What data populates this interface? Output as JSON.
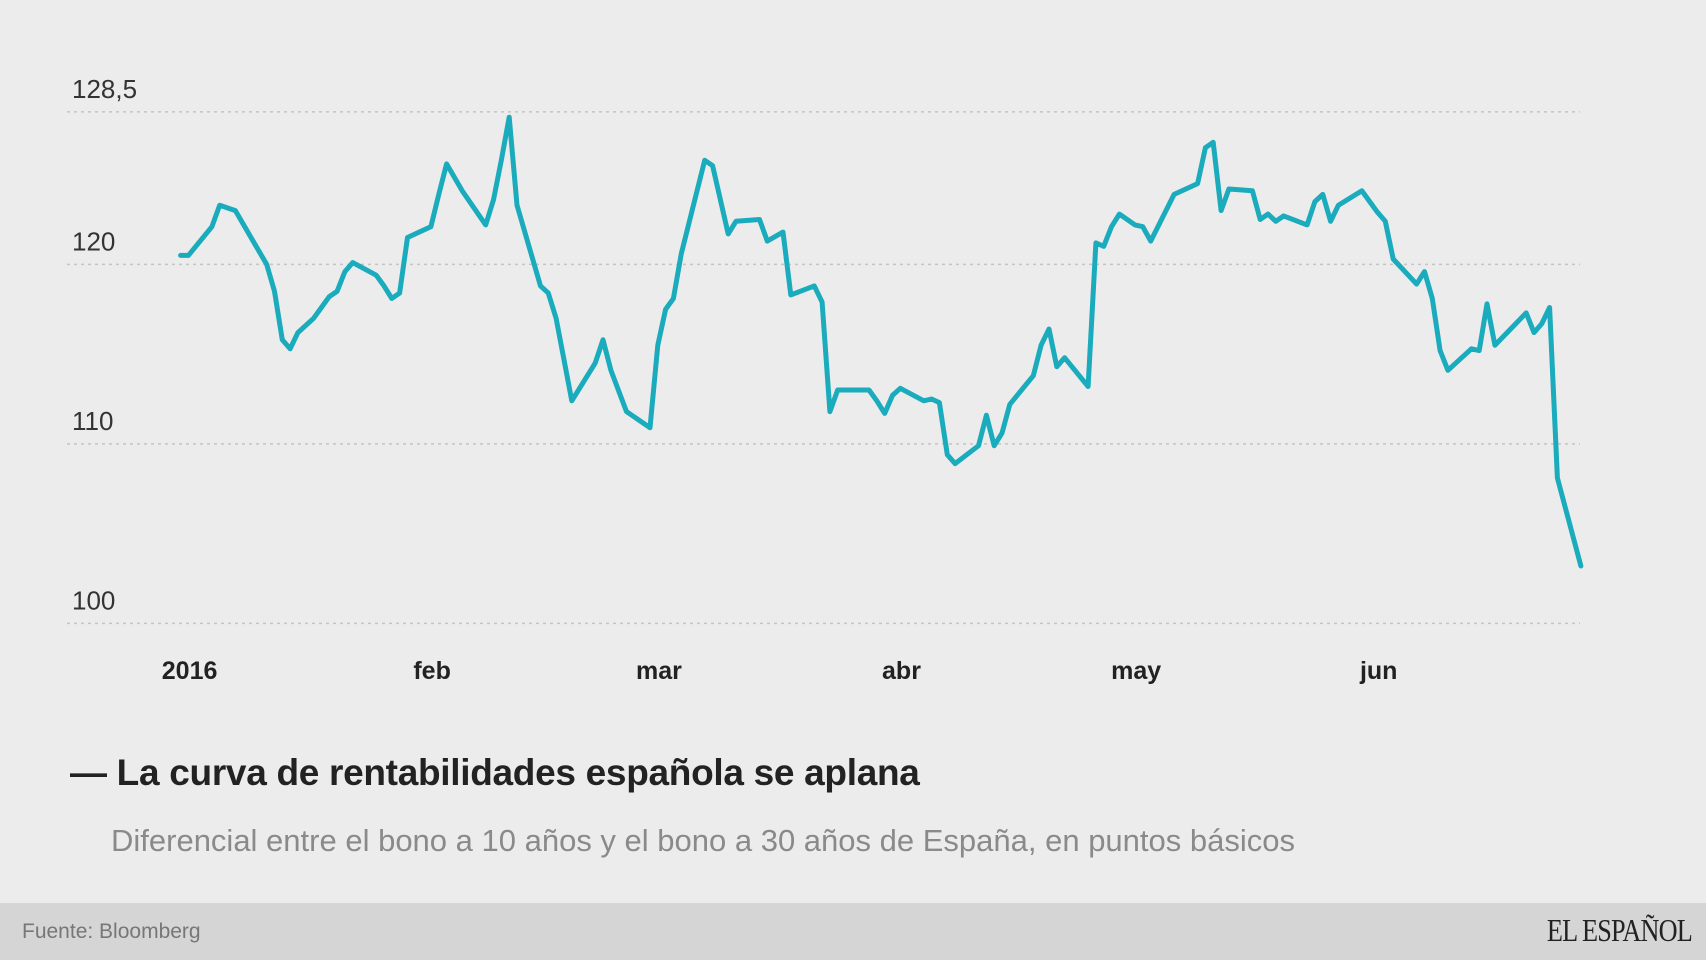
{
  "chart_data": {
    "type": "line",
    "title": "La curva de rentabilidades española se aplana",
    "subtitle": "Diferencial entre el bono a 10 años y el bono a 30 años de España, en puntos básicos",
    "xlabel": "",
    "ylabel": "",
    "ylim": [
      100,
      128.5
    ],
    "y_ticks": [
      {
        "value": 100,
        "label": "100"
      },
      {
        "value": 110,
        "label": "110"
      },
      {
        "value": 120,
        "label": "120"
      },
      {
        "value": 128.5,
        "label": "128,5"
      }
    ],
    "x_ticks": [
      {
        "date": "2016-01-01",
        "label": "2016"
      },
      {
        "date": "2016-02-01",
        "label": "feb"
      },
      {
        "date": "2016-03-01",
        "label": "mar"
      },
      {
        "date": "2016-04-01",
        "label": "abr"
      },
      {
        "date": "2016-05-01",
        "label": "may"
      },
      {
        "date": "2016-06-01",
        "label": "jun"
      }
    ],
    "grid": "horizontal dotted",
    "line_color": "#1aabbd",
    "series": [
      {
        "points": [
          [
            "2016-01-01",
            120.5
          ],
          [
            "2016-01-02",
            120.5
          ],
          [
            "2016-01-05",
            122.1
          ],
          [
            "2016-01-06",
            123.3
          ],
          [
            "2016-01-08",
            123.0
          ],
          [
            "2016-01-10",
            121.5
          ],
          [
            "2016-01-12",
            120.0
          ],
          [
            "2016-01-13",
            118.5
          ],
          [
            "2016-01-14",
            115.8
          ],
          [
            "2016-01-15",
            115.3
          ],
          [
            "2016-01-16",
            116.2
          ],
          [
            "2016-01-18",
            117.0
          ],
          [
            "2016-01-19",
            117.6
          ],
          [
            "2016-01-20",
            118.2
          ],
          [
            "2016-01-21",
            118.5
          ],
          [
            "2016-01-22",
            119.6
          ],
          [
            "2016-01-23",
            120.1
          ],
          [
            "2016-01-26",
            119.4
          ],
          [
            "2016-01-27",
            118.8
          ],
          [
            "2016-01-28",
            118.1
          ],
          [
            "2016-01-29",
            118.4
          ],
          [
            "2016-01-30",
            121.5
          ],
          [
            "2016-02-02",
            122.1
          ],
          [
            "2016-02-03",
            123.9
          ],
          [
            "2016-02-04",
            125.6
          ],
          [
            "2016-02-06",
            124.1
          ],
          [
            "2016-02-09",
            122.2
          ],
          [
            "2016-02-10",
            123.6
          ],
          [
            "2016-02-11",
            125.8
          ],
          [
            "2016-02-12",
            128.2
          ],
          [
            "2016-02-13",
            123.3
          ],
          [
            "2016-02-16",
            118.8
          ],
          [
            "2016-02-17",
            118.4
          ],
          [
            "2016-02-18",
            117.0
          ],
          [
            "2016-02-20",
            112.4
          ],
          [
            "2016-02-23",
            114.5
          ],
          [
            "2016-02-24",
            115.8
          ],
          [
            "2016-02-25",
            114.1
          ],
          [
            "2016-02-27",
            111.8
          ],
          [
            "2016-03-01",
            110.9
          ],
          [
            "2016-03-02",
            115.5
          ],
          [
            "2016-03-03",
            117.5
          ],
          [
            "2016-03-04",
            118.1
          ],
          [
            "2016-03-05",
            120.6
          ],
          [
            "2016-03-08",
            125.8
          ],
          [
            "2016-03-09",
            125.5
          ],
          [
            "2016-03-11",
            121.7
          ],
          [
            "2016-03-12",
            122.4
          ],
          [
            "2016-03-15",
            122.5
          ],
          [
            "2016-03-16",
            121.3
          ],
          [
            "2016-03-18",
            121.8
          ],
          [
            "2016-03-19",
            118.3
          ],
          [
            "2016-03-22",
            118.8
          ],
          [
            "2016-03-23",
            117.9
          ],
          [
            "2016-03-24",
            111.8
          ],
          [
            "2016-03-25",
            113.0
          ],
          [
            "2016-03-29",
            113.0
          ],
          [
            "2016-03-30",
            112.4
          ],
          [
            "2016-03-31",
            111.7
          ],
          [
            "2016-04-01",
            112.7
          ],
          [
            "2016-04-02",
            113.1
          ],
          [
            "2016-04-05",
            112.4
          ],
          [
            "2016-04-06",
            112.5
          ],
          [
            "2016-04-07",
            112.3
          ],
          [
            "2016-04-08",
            109.4
          ],
          [
            "2016-04-09",
            108.9
          ],
          [
            "2016-04-12",
            109.9
          ],
          [
            "2016-04-13",
            111.6
          ],
          [
            "2016-04-14",
            109.9
          ],
          [
            "2016-04-15",
            110.6
          ],
          [
            "2016-04-16",
            112.2
          ],
          [
            "2016-04-19",
            113.8
          ],
          [
            "2016-04-20",
            115.5
          ],
          [
            "2016-04-21",
            116.4
          ],
          [
            "2016-04-22",
            114.3
          ],
          [
            "2016-04-23",
            114.8
          ],
          [
            "2016-04-26",
            113.2
          ],
          [
            "2016-04-27",
            121.2
          ],
          [
            "2016-04-28",
            121.0
          ],
          [
            "2016-04-29",
            122.1
          ],
          [
            "2016-04-30",
            122.8
          ],
          [
            "2016-05-02",
            122.2
          ],
          [
            "2016-05-03",
            122.1
          ],
          [
            "2016-05-04",
            121.3
          ],
          [
            "2016-05-07",
            123.9
          ],
          [
            "2016-05-10",
            124.5
          ],
          [
            "2016-05-11",
            126.5
          ],
          [
            "2016-05-12",
            126.8
          ],
          [
            "2016-05-13",
            123.0
          ],
          [
            "2016-05-14",
            124.2
          ],
          [
            "2016-05-17",
            124.1
          ],
          [
            "2016-05-18",
            122.5
          ],
          [
            "2016-05-19",
            122.8
          ],
          [
            "2016-05-20",
            122.4
          ],
          [
            "2016-05-21",
            122.7
          ],
          [
            "2016-05-24",
            122.2
          ],
          [
            "2016-05-25",
            123.5
          ],
          [
            "2016-05-26",
            123.9
          ],
          [
            "2016-05-27",
            122.4
          ],
          [
            "2016-05-28",
            123.3
          ],
          [
            "2016-05-31",
            124.1
          ],
          [
            "2016-06-01",
            123.5
          ],
          [
            "2016-06-02",
            122.9
          ],
          [
            "2016-06-03",
            122.4
          ],
          [
            "2016-06-04",
            120.3
          ],
          [
            "2016-06-07",
            118.9
          ],
          [
            "2016-06-08",
            119.6
          ],
          [
            "2016-06-09",
            118.1
          ],
          [
            "2016-06-10",
            115.2
          ],
          [
            "2016-06-11",
            114.1
          ],
          [
            "2016-06-14",
            115.3
          ],
          [
            "2016-06-15",
            115.2
          ],
          [
            "2016-06-16",
            117.8
          ],
          [
            "2016-06-17",
            115.5
          ],
          [
            "2016-06-21",
            117.3
          ],
          [
            "2016-06-22",
            116.2
          ],
          [
            "2016-06-23",
            116.7
          ],
          [
            "2016-06-24",
            117.6
          ],
          [
            "2016-06-25",
            108.1
          ],
          [
            "2016-06-28",
            103.2
          ]
        ]
      }
    ]
  },
  "header": {
    "title": "— La curva de rentabilidades española se aplana",
    "subtitle": "Diferencial entre el bono a 10 años y el bono a 30 años de España, en puntos básicos"
  },
  "footer": {
    "source": "Fuente: Bloomberg",
    "logo": "EL ESPAÑOL"
  }
}
